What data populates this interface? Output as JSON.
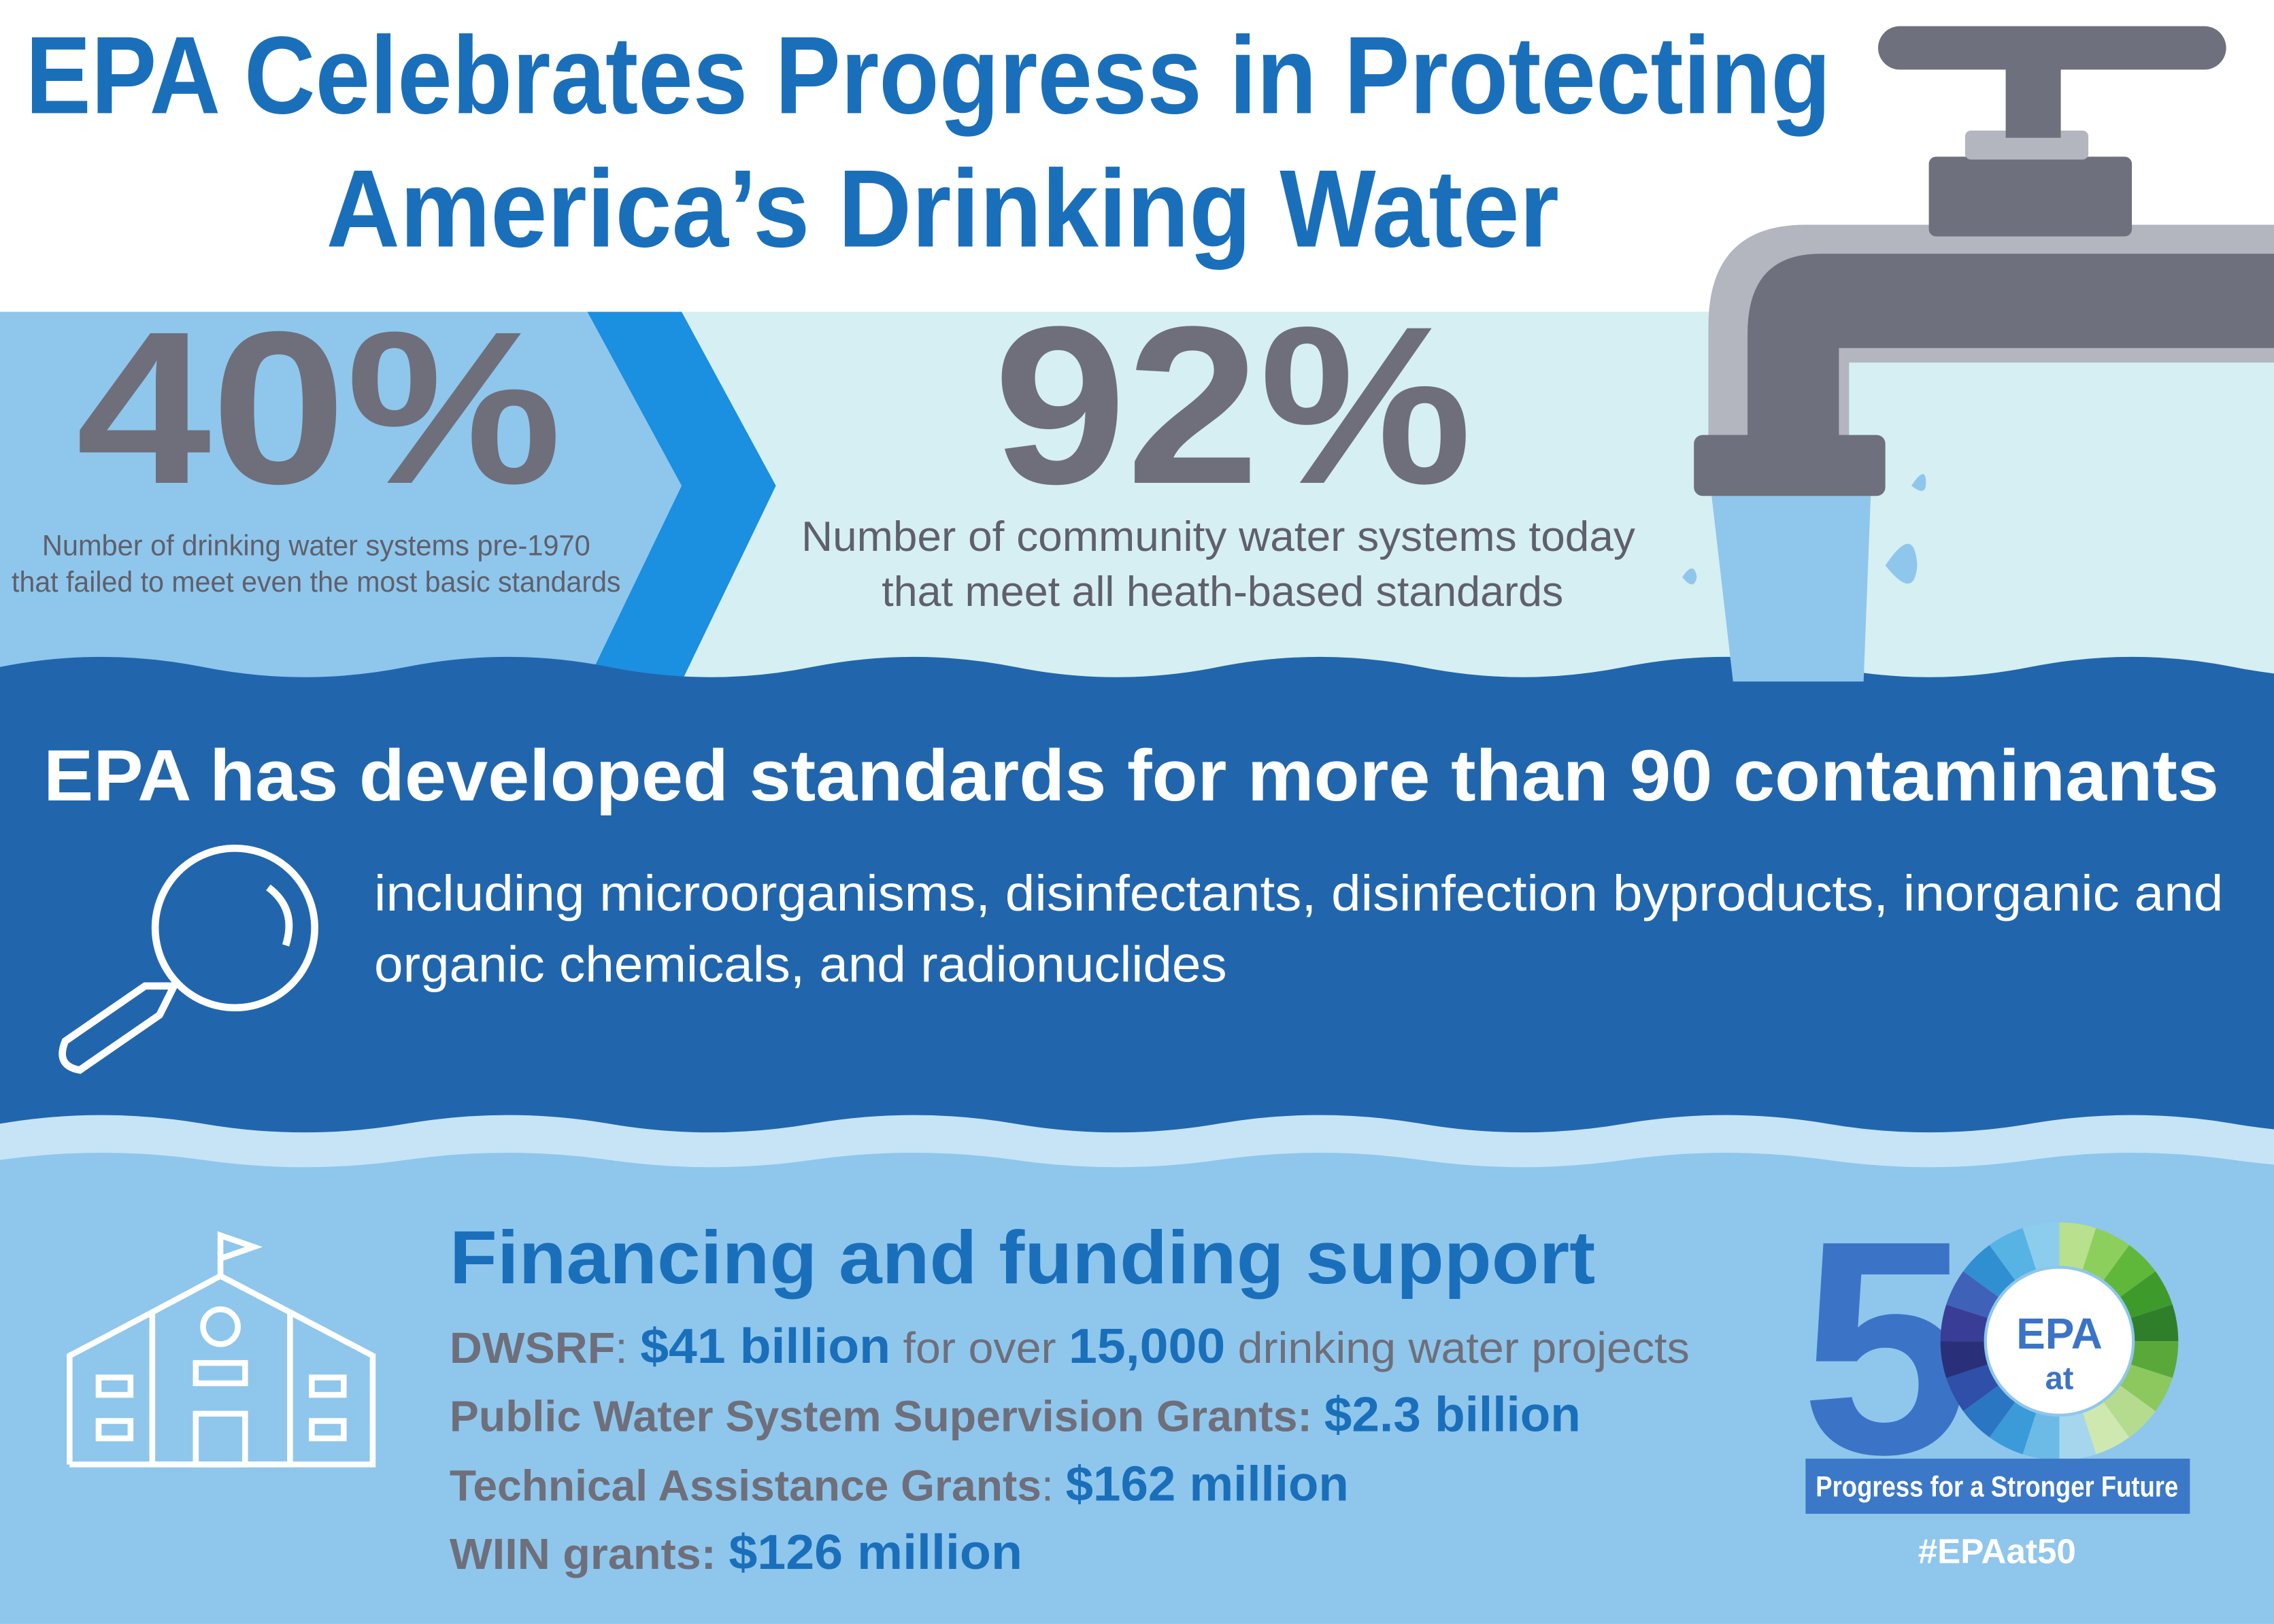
{
  "header": {
    "title": [
      "EPA Celebrates Progress in Protecting",
      "America’s Drinking Water"
    ]
  },
  "stats": [
    {
      "value": "40%",
      "caption": [
        "Number of drinking water systems pre-1970",
        "that failed to meet even the most basic standards"
      ]
    },
    {
      "value": "92%",
      "caption": [
        "Number of community water systems today",
        "that meet all heath-based standards"
      ]
    }
  ],
  "contaminants": {
    "heading": "EPA has developed standards for more than 90 contaminants",
    "text": [
      " including microorganisms, disinfectants, disinfection byproducts, inorganic and",
      "organic chemicals, and radionuclides"
    ]
  },
  "funding": {
    "heading": "Financing and funding support",
    "items": [
      [
        "DWSRF",
        ": ",
        "$41 billion",
        " for over ",
        "15,000",
        " drinking water projects"
      ],
      [
        "Public Water System Supervision Grants: ",
        "$2.3 billion"
      ],
      [
        "Technical Assistance Grants",
        ": ",
        "$162 million"
      ],
      [
        "WIIN grants: ",
        "$126 million"
      ]
    ]
  },
  "logo": {
    "number": "5",
    "name": "EPA",
    "at": "at",
    "tagline": "Progress for a Stronger Future",
    "hashtag": "#EPAat50"
  }
}
